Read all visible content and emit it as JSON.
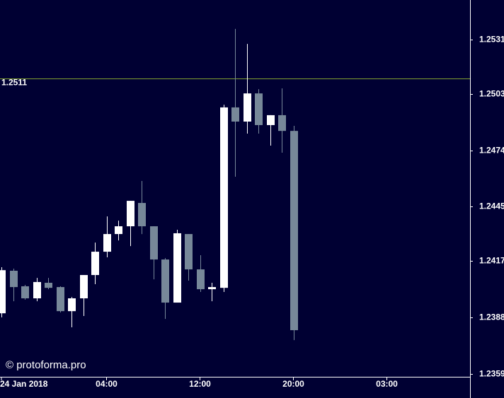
{
  "chart_data": {
    "type": "candlestick",
    "categories": [
      "24 Jan 2018",
      null,
      null,
      null,
      null,
      null,
      null,
      null,
      null,
      "04:00",
      null,
      null,
      null,
      null,
      null,
      null,
      null,
      "12:00",
      null,
      null,
      null,
      null,
      null,
      null,
      null,
      "20:00",
      null,
      null,
      null,
      null,
      null,
      null,
      null,
      "03:00"
    ],
    "open": [
      1.23901,
      1.2412,
      1.2404,
      1.23978,
      1.24058,
      1.24036,
      1.23912,
      1.23978,
      1.24098,
      1.24218,
      1.24309,
      1.24349,
      1.24469,
      1.24349,
      1.24178,
      1.23956,
      1.24309,
      1.24127,
      1.24025,
      1.24032,
      1.24961,
      1.24888,
      1.25033,
      1.2487,
      1.24921,
      1.2484,
      null,
      null,
      null,
      null,
      null,
      null,
      null,
      null
    ],
    "high": [
      1.24138,
      1.24131,
      1.24047,
      1.24083,
      1.24083,
      1.2404,
      1.23985,
      1.24098,
      1.24265,
      1.244,
      1.24378,
      1.2448,
      1.24582,
      1.24349,
      1.24185,
      1.24331,
      1.24309,
      1.242,
      1.24058,
      1.24975,
      1.25365,
      1.25288,
      1.25055,
      1.24921,
      1.25059,
      1.24866,
      null,
      null,
      null,
      null,
      null,
      null,
      null,
      null
    ],
    "low": [
      1.2388,
      1.23963,
      1.23971,
      1.23963,
      1.24025,
      1.23905,
      1.23829,
      1.23887,
      1.24051,
      1.24189,
      1.24276,
      1.24247,
      1.24309,
      1.24076,
      1.23872,
      1.23956,
      1.24069,
      1.24011,
      1.23963,
      1.24011,
      1.24604,
      1.24826,
      1.24826,
      1.24764,
      1.24728,
      1.23763,
      null,
      null,
      null,
      null,
      null,
      null,
      null,
      null
    ],
    "close": [
      1.24123,
      1.24036,
      1.23978,
      1.24062,
      1.24032,
      1.23912,
      1.23978,
      1.24098,
      1.24218,
      1.24309,
      1.24349,
      1.2448,
      1.24349,
      1.24178,
      1.23956,
      1.24313,
      1.24127,
      1.24025,
      1.24036,
      1.24961,
      1.24888,
      1.25033,
      1.2487,
      1.24921,
      1.2484,
      1.23814,
      null,
      null,
      null,
      null,
      null,
      null,
      null,
      null
    ],
    "up_color": "#ffffff",
    "down_color": "#778899",
    "ylim": [
      1.23574,
      1.25514
    ],
    "yticks": [
      1.2531,
      1.2503,
      1.2474,
      1.2445,
      1.2417,
      1.2388,
      1.2359
    ],
    "hline": 1.2511,
    "hline_color": "#7f9f2f",
    "watermark": "© protoforma.pro",
    "grid": false
  }
}
